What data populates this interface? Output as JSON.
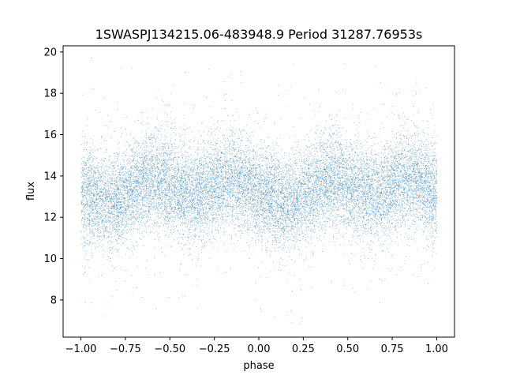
{
  "chart_data": {
    "type": "scatter",
    "title": "1SWASPJ134215.06-483948.9 Period 31287.76953s",
    "xlabel": "phase",
    "ylabel": "flux",
    "xlim": [
      -1.1,
      1.1
    ],
    "ylim": [
      6.2,
      20.3
    ],
    "x_ticks": [
      -1.0,
      -0.75,
      -0.5,
      -0.25,
      0.0,
      0.25,
      0.5,
      0.75,
      1.0
    ],
    "x_tick_labels": [
      "−1.00",
      "−0.75",
      "−0.50",
      "−0.25",
      "0.00",
      "0.25",
      "0.50",
      "0.75",
      "1.00"
    ],
    "y_ticks": [
      8,
      10,
      12,
      14,
      16,
      18,
      20
    ],
    "y_tick_labels": [
      "8",
      "10",
      "12",
      "14",
      "16",
      "18",
      "20"
    ],
    "grid": false,
    "marker_color": "#1f77b4",
    "series": [
      {
        "phase_range": [
          -1.0,
          1.0
        ],
        "flux_min": 6.8,
        "flux_max": 19.8,
        "mean_flux_trend": [
          {
            "phase": -1.0,
            "flux": 13.2
          },
          {
            "phase": -0.85,
            "flux": 12.7
          },
          {
            "phase": -0.6,
            "flux": 13.8
          },
          {
            "phase": -0.35,
            "flux": 13.1
          },
          {
            "phase": -0.15,
            "flux": 13.9
          },
          {
            "phase": 0.0,
            "flux": 13.2
          },
          {
            "phase": 0.15,
            "flux": 12.7
          },
          {
            "phase": 0.4,
            "flux": 13.8
          },
          {
            "phase": 0.65,
            "flux": 13.1
          },
          {
            "phase": 0.85,
            "flux": 13.9
          },
          {
            "phase": 1.0,
            "flux": 13.2
          }
        ],
        "core_spread": 1.1,
        "outlier_fraction": 0.06
      }
    ]
  }
}
